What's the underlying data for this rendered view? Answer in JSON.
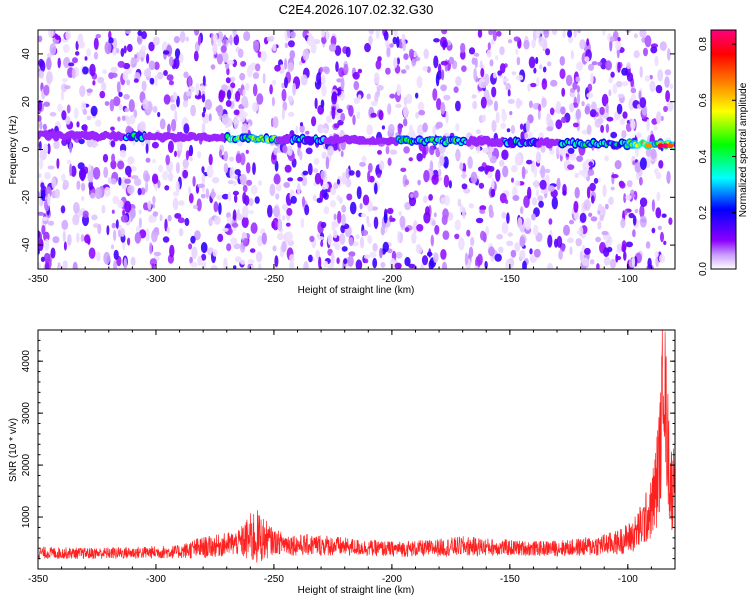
{
  "title": "C2E4.2026.107.02.32.G30",
  "chart_data": [
    {
      "type": "heatmap",
      "xlabel": "Height of straight line (km)",
      "ylabel": "Frequency (Hz)",
      "xlim": [
        -350,
        -80
      ],
      "ylim": [
        -50,
        50
      ],
      "xticks": [
        -350,
        -300,
        -250,
        -200,
        -150,
        -100
      ],
      "yticks": [
        -40,
        -20,
        0,
        20,
        40
      ],
      "colorbar": {
        "label": "Normalized spectral amplitude",
        "range": [
          0,
          0.85
        ],
        "ticks": [
          "0.0",
          "0.2",
          "0.4",
          "0.6",
          "0.8"
        ],
        "colors": [
          "#ffffff",
          "#8b00ff",
          "#0000ff",
          "#00ffff",
          "#00ff00",
          "#ffff00",
          "#ff8000",
          "#ff0000",
          "#ff0080"
        ]
      },
      "signal_band": {
        "start": [
          -350,
          6
        ],
        "end": [
          -80,
          2
        ],
        "peak_amplitude": 0.85,
        "peak_height": -87
      },
      "bright_segments": [
        {
          "x0": -313,
          "x1": -304,
          "amp": 0.45
        },
        {
          "x0": -270,
          "x1": -248,
          "amp": 0.6
        },
        {
          "x0": -243,
          "x1": -228,
          "amp": 0.4
        },
        {
          "x0": -198,
          "x1": -168,
          "amp": 0.5
        },
        {
          "x0": -153,
          "x1": -138,
          "amp": 0.4
        },
        {
          "x0": -128,
          "x1": -100,
          "amp": 0.45
        },
        {
          "x0": -100,
          "x1": -80,
          "amp": 0.75
        }
      ],
      "data_coverage_end": -81
    },
    {
      "type": "line",
      "xlabel": "Height of straight line (km)",
      "ylabel": "SNR (10 * v/v)",
      "xlim": [
        -350,
        -80
      ],
      "ylim": [
        0,
        4600
      ],
      "xticks": [
        -350,
        -300,
        -250,
        -200,
        -150,
        -100
      ],
      "yticks": [
        1000,
        2000,
        3000,
        4000
      ],
      "color": "#ff2020",
      "series": [
        {
          "name": "SNR",
          "x": [
            -350,
            -330,
            -310,
            -290,
            -282,
            -275,
            -265,
            -258,
            -250,
            -240,
            -230,
            -215,
            -200,
            -185,
            -170,
            -155,
            -140,
            -125,
            -115,
            -105,
            -98,
            -94,
            -90,
            -88,
            -86,
            -85,
            -84,
            -83,
            -82,
            -81,
            -80
          ],
          "base": [
            300,
            290,
            300,
            320,
            380,
            420,
            480,
            560,
            500,
            440,
            440,
            400,
            370,
            380,
            420,
            400,
            380,
            390,
            420,
            480,
            600,
            800,
            1100,
            1500,
            2300,
            4000,
            3000,
            2200,
            1600,
            1400,
            2200
          ],
          "spread": [
            180,
            170,
            180,
            200,
            320,
            330,
            380,
            900,
            360,
            320,
            320,
            250,
            230,
            250,
            300,
            250,
            220,
            250,
            300,
            360,
            500,
            700,
            900,
            1400,
            1800,
            2000,
            2200,
            1800,
            1500,
            1200,
            900
          ]
        }
      ]
    }
  ]
}
